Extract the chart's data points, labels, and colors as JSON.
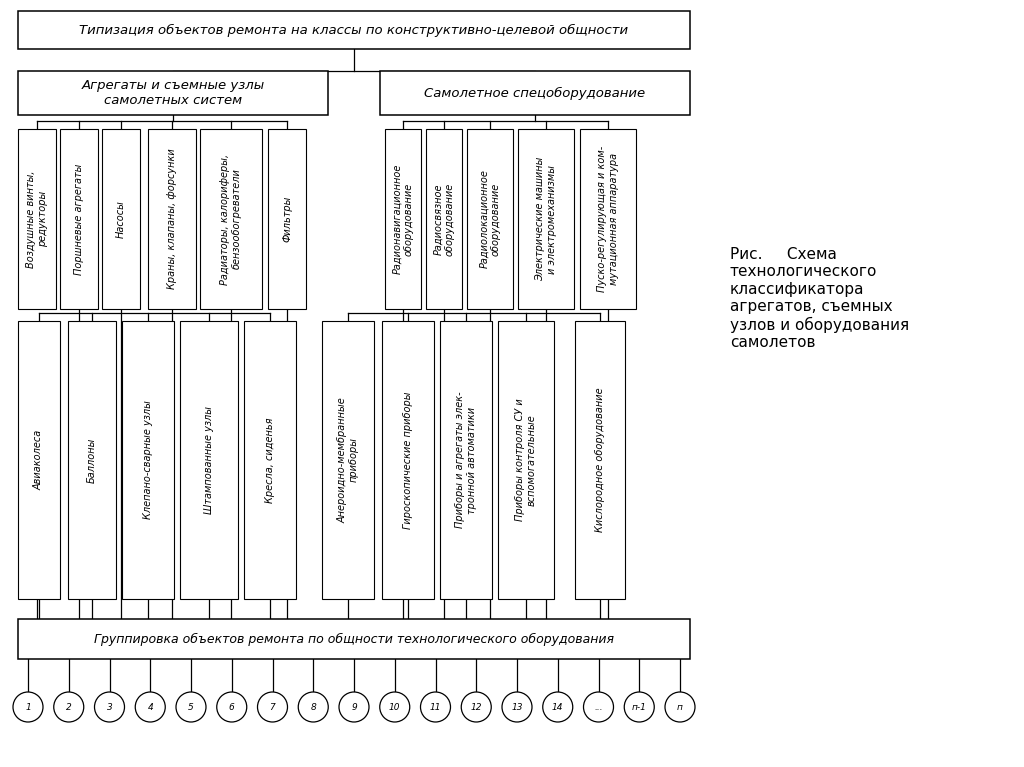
{
  "title_top": "Типизация объектов ремонта на классы по конструктивно-целевой общности",
  "box_left": "Агрегаты и съемные узлы\nсамолетных систем",
  "box_right": "Самолетное спецоборудование",
  "bottom_box": "Группировка объектов ремонта по общности технологического оборудования",
  "circles": [
    "1",
    "2",
    "3",
    "4",
    "5",
    "6",
    "7",
    "8",
    "9",
    "10",
    "11",
    "12",
    "13",
    "14",
    "...",
    "п-1",
    "п"
  ],
  "top_labels_left": [
    "Воздушные винты,\nредукторы",
    "Поршневые агрегаты",
    "Насосы",
    "Краны, клапаны, форсунки",
    "Радиаторы, калориферы,\nбензообогреватели",
    "Фильтры"
  ],
  "top_labels_right": [
    "Радионавигационное\nоборудование",
    "Радиосвязное\nоборудование",
    "Радиолокационное\nоборудование",
    "Электрические машины\nи электромеханизмы",
    "Пуско-регулирующая и ком-\nмутационная аппаратура"
  ],
  "bottom_labels_left": [
    "Авиаколеса",
    "Баллоны",
    "Клепано-сварные узлы",
    "Штампованные узлы",
    "Кресла, сиденья"
  ],
  "bottom_labels_right": [
    "Анероидно-мембранные\nприборы",
    "Гироскопические приборы",
    "Приборы и агрегаты элек-\nтронной автоматики",
    "Приборы контроля СУ и\nвспомогательные",
    "Кислородное оборудование"
  ],
  "bg_color": "#ffffff",
  "box_color": "#ffffff",
  "line_color": "#000000",
  "font_size": 7.0,
  "caption_line1": "Рис.     Схема",
  "caption_rest": "технологического\nклассификатора\nагрегатов, съемных\nузлов и оборудования\nсамолетов",
  "caption_fontsize": 11
}
